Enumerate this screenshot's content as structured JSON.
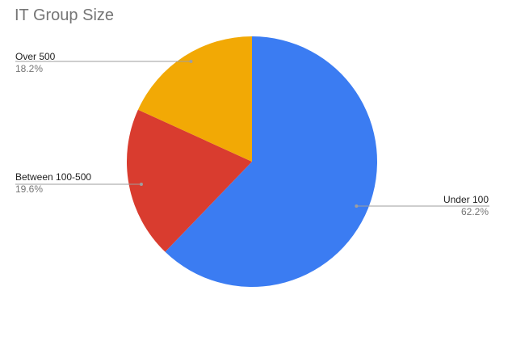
{
  "chart_data": {
    "type": "pie",
    "title": "IT Group Size",
    "slices": [
      {
        "label": "Under 100",
        "value": 62.2,
        "value_label": "62.2%",
        "color": "#3b7cf2"
      },
      {
        "label": "Between 100-500",
        "value": 19.6,
        "value_label": "19.6%",
        "color": "#d93c2f"
      },
      {
        "label": "Over 500",
        "value": 18.2,
        "value_label": "18.2%",
        "color": "#f2a905"
      }
    ],
    "start_angle_deg": 0,
    "direction": "clockwise",
    "leader_color": "#9e9e9e"
  }
}
